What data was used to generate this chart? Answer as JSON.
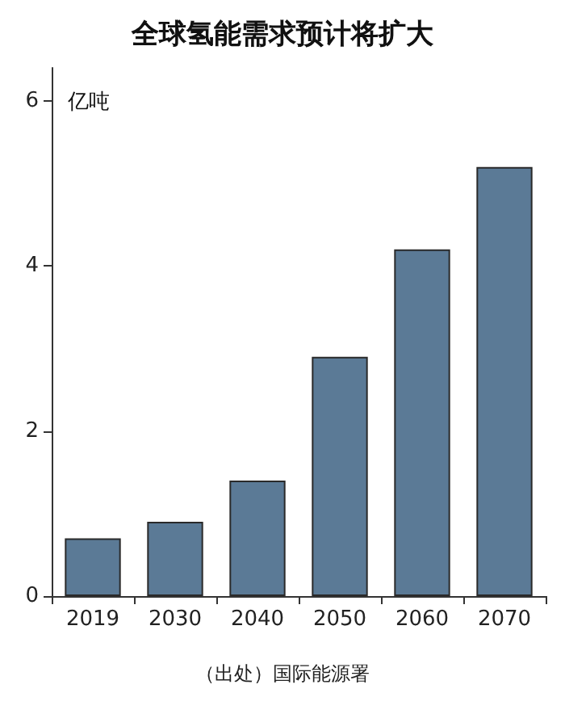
{
  "chart_data": {
    "type": "bar",
    "title": "全球氢能需求预计将扩大",
    "ylabel": "亿吨",
    "annotations": [
      "（出处）国际能源署"
    ],
    "categories": [
      "2019",
      "2030",
      "2040",
      "2050",
      "2060",
      "2070"
    ],
    "values": [
      0.7,
      0.9,
      1.4,
      2.9,
      4.2,
      5.2
    ],
    "color": "#5b7a96",
    "ylim": [
      0,
      6.4
    ],
    "yticks": [
      0,
      2,
      4,
      6
    ],
    "grid": false
  }
}
